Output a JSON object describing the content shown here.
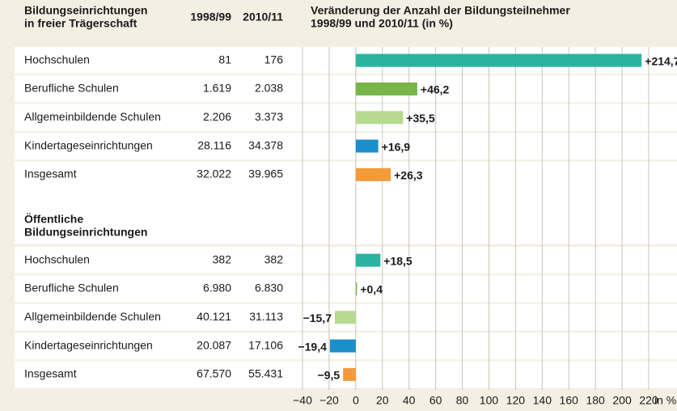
{
  "chart_data": {
    "type": "bar",
    "orientation": "horizontal",
    "columns": [
      "1998/99",
      "2010/11"
    ],
    "chart_title": [
      "Veränderung der Anzahl der Bildungsteilnehmer",
      "1998/99 und 2010/11 (in %)"
    ],
    "groups": [
      {
        "title": [
          "Bildungseinrichtungen",
          "in freier Trägerschaft"
        ],
        "categories": [
          "Hochschulen",
          "Berufliche Schulen",
          "Allgemeinbildende Schulen",
          "Kindertageseinrichtungen",
          "Insgesamt"
        ],
        "col1": [
          "81",
          "1.619",
          "2.206",
          "28.116",
          "32.022"
        ],
        "col2": [
          "176",
          "2.038",
          "3.373",
          "34.378",
          "39.965"
        ],
        "values": [
          214.7,
          46.2,
          35.5,
          16.9,
          26.3
        ],
        "value_labels": [
          "+214,7",
          "+46,2",
          "+35,5",
          "+16,9",
          "+26,3"
        ],
        "colors": [
          "#2ab4a0",
          "#78b548",
          "#b6da90",
          "#1b8fca",
          "#f39a3b"
        ]
      },
      {
        "title": [
          "Öffentliche",
          "Bildungseinrichtungen"
        ],
        "categories": [
          "Hochschulen",
          "Berufliche Schulen",
          "Allgemeinbildende Schulen",
          "Kindertageseinrichtungen",
          "Insgesamt"
        ],
        "col1": [
          "382",
          "6.980",
          "40.121",
          "20.087",
          "67.570"
        ],
        "col2": [
          "382",
          "6.830",
          "31.113",
          "17.106",
          "55.431"
        ],
        "values": [
          18.5,
          0.4,
          -15.7,
          -19.4,
          -9.5
        ],
        "value_labels": [
          "+18,5",
          "+0,4",
          "−15,7",
          "−19,4",
          "−9,5"
        ],
        "colors": [
          "#2ab4a0",
          "#78b548",
          "#b6da90",
          "#1b8fca",
          "#f39a3b"
        ]
      }
    ],
    "xlim": [
      -40,
      220
    ],
    "xticks": [
      {
        "value": -40,
        "label": "−40"
      },
      {
        "value": -20,
        "label": "−20"
      },
      0,
      20,
      40,
      60,
      80,
      100,
      120,
      140,
      160,
      180,
      200,
      220
    ],
    "x_unit": "in %",
    "grid": true
  }
}
